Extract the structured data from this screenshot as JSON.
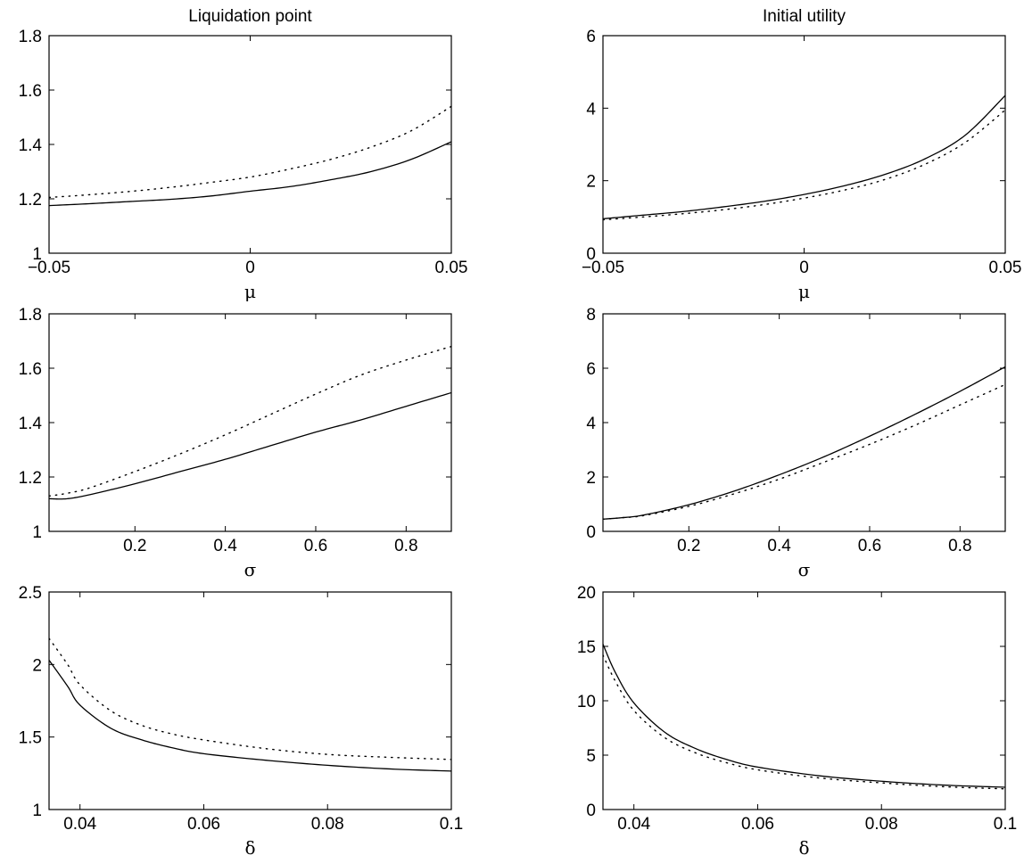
{
  "chart_data": [
    {
      "type": "line",
      "title": "Liquidation point",
      "xlabel": "μ",
      "ylabel": "",
      "xlim": [
        -0.05,
        0.05
      ],
      "ylim": [
        1,
        1.8
      ],
      "xticks": [
        -0.05,
        0,
        0.05
      ],
      "xtick_labels": [
        "−0.05",
        "0",
        "0.05"
      ],
      "yticks": [
        1,
        1.2,
        1.4,
        1.6,
        1.8
      ],
      "ytick_labels": [
        "1",
        "1.2",
        "1.4",
        "1.6",
        "1.8"
      ],
      "grid": false,
      "series": [
        {
          "style": "solid",
          "x": [
            -0.05,
            -0.04,
            -0.03,
            -0.02,
            -0.01,
            0,
            0.01,
            0.02,
            0.03,
            0.04,
            0.05
          ],
          "y": [
            1.175,
            1.182,
            1.19,
            1.198,
            1.21,
            1.228,
            1.245,
            1.27,
            1.3,
            1.345,
            1.41
          ]
        },
        {
          "style": "dotted",
          "x": [
            -0.05,
            -0.04,
            -0.03,
            -0.02,
            -0.01,
            0,
            0.01,
            0.02,
            0.03,
            0.04,
            0.05
          ],
          "y": [
            1.205,
            1.215,
            1.227,
            1.242,
            1.26,
            1.28,
            1.31,
            1.345,
            1.39,
            1.45,
            1.54
          ]
        }
      ]
    },
    {
      "type": "line",
      "title": "Initial utility",
      "xlabel": "μ",
      "ylabel": "",
      "xlim": [
        -0.05,
        0.05
      ],
      "ylim": [
        0,
        6
      ],
      "xticks": [
        -0.05,
        0,
        0.05
      ],
      "xtick_labels": [
        "−0.05",
        "0",
        "0.05"
      ],
      "yticks": [
        0,
        2,
        4,
        6
      ],
      "ytick_labels": [
        "0",
        "2",
        "4",
        "6"
      ],
      "grid": false,
      "series": [
        {
          "style": "solid",
          "x": [
            -0.05,
            -0.04,
            -0.03,
            -0.02,
            -0.01,
            0,
            0.01,
            0.02,
            0.03,
            0.04,
            0.05
          ],
          "y": [
            0.95,
            1.05,
            1.15,
            1.28,
            1.43,
            1.62,
            1.86,
            2.17,
            2.6,
            3.25,
            4.35
          ]
        },
        {
          "style": "dotted",
          "x": [
            -0.05,
            -0.04,
            -0.03,
            -0.02,
            -0.01,
            0,
            0.01,
            0.02,
            0.03,
            0.04,
            0.05
          ],
          "y": [
            0.92,
            1.0,
            1.09,
            1.2,
            1.34,
            1.52,
            1.74,
            2.03,
            2.45,
            3.05,
            3.95
          ]
        }
      ]
    },
    {
      "type": "line",
      "title": "",
      "xlabel": "σ",
      "ylabel": "",
      "xlim": [
        0.01,
        0.9
      ],
      "ylim": [
        1,
        1.8
      ],
      "xticks": [
        0.2,
        0.4,
        0.6,
        0.8
      ],
      "xtick_labels": [
        "0.2",
        "0.4",
        "0.6",
        "0.8"
      ],
      "yticks": [
        1,
        1.2,
        1.4,
        1.6,
        1.8
      ],
      "ytick_labels": [
        "1",
        "1.2",
        "1.4",
        "1.6",
        "1.8"
      ],
      "grid": false,
      "series": [
        {
          "style": "solid",
          "x": [
            0.01,
            0.05,
            0.1,
            0.2,
            0.3,
            0.4,
            0.5,
            0.6,
            0.7,
            0.8,
            0.9
          ],
          "y": [
            1.12,
            1.12,
            1.135,
            1.175,
            1.22,
            1.265,
            1.315,
            1.365,
            1.41,
            1.46,
            1.51
          ]
        },
        {
          "style": "dotted",
          "x": [
            0.01,
            0.05,
            0.1,
            0.2,
            0.3,
            0.4,
            0.5,
            0.6,
            0.7,
            0.8,
            0.9
          ],
          "y": [
            1.13,
            1.14,
            1.16,
            1.22,
            1.285,
            1.355,
            1.43,
            1.505,
            1.575,
            1.63,
            1.68
          ]
        }
      ]
    },
    {
      "type": "line",
      "title": "",
      "xlabel": "σ",
      "ylabel": "",
      "xlim": [
        0.01,
        0.9
      ],
      "ylim": [
        0,
        8
      ],
      "xticks": [
        0.2,
        0.4,
        0.6,
        0.8
      ],
      "xtick_labels": [
        "0.2",
        "0.4",
        "0.6",
        "0.8"
      ],
      "yticks": [
        0,
        2,
        4,
        6,
        8
      ],
      "ytick_labels": [
        "0",
        "2",
        "4",
        "6",
        "8"
      ],
      "grid": false,
      "series": [
        {
          "style": "solid",
          "x": [
            0.01,
            0.05,
            0.1,
            0.2,
            0.3,
            0.4,
            0.5,
            0.6,
            0.7,
            0.8,
            0.9
          ],
          "y": [
            0.45,
            0.5,
            0.6,
            0.98,
            1.48,
            2.08,
            2.75,
            3.5,
            4.3,
            5.15,
            6.05
          ]
        },
        {
          "style": "dotted",
          "x": [
            0.01,
            0.05,
            0.1,
            0.2,
            0.3,
            0.4,
            0.5,
            0.6,
            0.7,
            0.8,
            0.9
          ],
          "y": [
            0.45,
            0.5,
            0.58,
            0.92,
            1.38,
            1.92,
            2.55,
            3.2,
            3.9,
            4.65,
            5.4
          ]
        }
      ]
    },
    {
      "type": "line",
      "title": "",
      "xlabel": "δ",
      "ylabel": "",
      "xlim": [
        0.035,
        0.1
      ],
      "ylim": [
        1,
        2.5
      ],
      "xticks": [
        0.04,
        0.06,
        0.08,
        0.1
      ],
      "xtick_labels": [
        "0.04",
        "0.06",
        "0.08",
        "0.1"
      ],
      "yticks": [
        1,
        1.5,
        2,
        2.5
      ],
      "ytick_labels": [
        "1",
        "1.5",
        "2",
        "2.5"
      ],
      "grid": false,
      "series": [
        {
          "style": "solid",
          "x": [
            0.035,
            0.038,
            0.04,
            0.045,
            0.05,
            0.055,
            0.06,
            0.07,
            0.08,
            0.09,
            0.1
          ],
          "y": [
            2.03,
            1.85,
            1.72,
            1.56,
            1.48,
            1.425,
            1.385,
            1.34,
            1.305,
            1.28,
            1.265
          ]
        },
        {
          "style": "dotted",
          "x": [
            0.035,
            0.038,
            0.04,
            0.045,
            0.05,
            0.055,
            0.06,
            0.07,
            0.08,
            0.09,
            0.1
          ],
          "y": [
            2.18,
            2.0,
            1.86,
            1.68,
            1.58,
            1.52,
            1.48,
            1.42,
            1.38,
            1.36,
            1.345
          ]
        }
      ]
    },
    {
      "type": "line",
      "title": "",
      "xlabel": "δ",
      "ylabel": "",
      "xlim": [
        0.035,
        0.1
      ],
      "ylim": [
        0,
        20
      ],
      "xticks": [
        0.04,
        0.06,
        0.08,
        0.1
      ],
      "xtick_labels": [
        "0.04",
        "0.06",
        "0.08",
        "0.1"
      ],
      "yticks": [
        0,
        5,
        10,
        15,
        20
      ],
      "ytick_labels": [
        "0",
        "5",
        "10",
        "15",
        "20"
      ],
      "grid": false,
      "series": [
        {
          "style": "solid",
          "x": [
            0.035,
            0.037,
            0.04,
            0.045,
            0.05,
            0.055,
            0.06,
            0.07,
            0.08,
            0.09,
            0.1
          ],
          "y": [
            15.2,
            12.6,
            9.8,
            7.1,
            5.6,
            4.6,
            3.9,
            3.1,
            2.6,
            2.25,
            2.05
          ]
        },
        {
          "style": "dotted",
          "x": [
            0.035,
            0.037,
            0.04,
            0.045,
            0.05,
            0.055,
            0.06,
            0.07,
            0.08,
            0.09,
            0.1
          ],
          "y": [
            14.2,
            11.8,
            9.1,
            6.6,
            5.2,
            4.3,
            3.65,
            2.9,
            2.45,
            2.1,
            1.9
          ]
        }
      ]
    }
  ]
}
